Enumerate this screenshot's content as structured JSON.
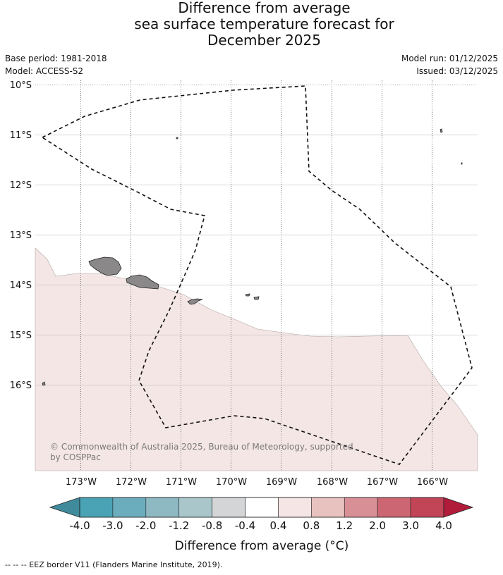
{
  "title": {
    "line1": "Difference from average",
    "line2": "sea surface temperature forecast for",
    "line3": "December 2025"
  },
  "meta": {
    "base_period": "Base period: 1981-2018",
    "model": "Model: ACCESS-S2",
    "model_run": "Model run: 01/12/2025",
    "issued": "Issued: 03/12/2025"
  },
  "map": {
    "lat_labels": [
      "10°S",
      "11°S",
      "12°S",
      "13°S",
      "14°S",
      "15°S",
      "16°S"
    ],
    "lon_labels": [
      "173°W",
      "172°W",
      "171°W",
      "170°W",
      "169°W",
      "168°W",
      "167°W",
      "166°W"
    ],
    "copyright_line1": "© Commonwealth of Australia 2025, Bureau of Meteorology, supported",
    "copyright_line2": "by COSPPac",
    "anomaly_fill_color": "#f4e6e4",
    "land_color": "#8a8888"
  },
  "colorbar": {
    "tick_labels": [
      "-4.0",
      "-3.0",
      "-2.0",
      "-1.2",
      "-0.8",
      "-0.4",
      "0.4",
      "0.8",
      "1.2",
      "2.0",
      "3.0",
      "4.0"
    ],
    "colors": [
      "#4aa3b5",
      "#6cadbd",
      "#8eb8c2",
      "#a9c7cb",
      "#d3d5d6",
      "#ffffff",
      "#f5e6e5",
      "#e8c2bf",
      "#d98f96",
      "#cd6673",
      "#c24457"
    ],
    "low_extend_color": "#3f8b9c",
    "high_extend_color": "#b21c3b",
    "label": "Difference from average (°C)"
  },
  "footer": {
    "text": "-- -- -- EEZ border V11 (Flanders Marine Institute, 2019)."
  }
}
